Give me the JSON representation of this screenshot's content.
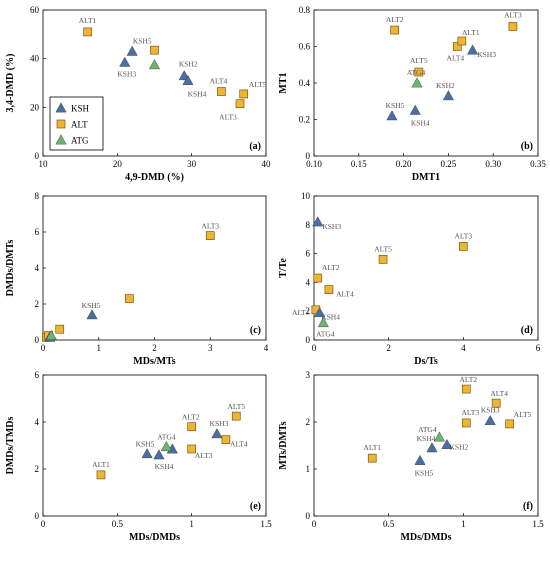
{
  "figure": {
    "title": ""
  },
  "colors": {
    "KSH": "#4a6fa5",
    "ALT": "#f0b433",
    "ATG": "#6db56d",
    "marker_edge": "#7a5a14"
  },
  "legend": {
    "placement": "bottom-left of panel (a)",
    "entries": [
      "KSH",
      "ALT",
      "ATG"
    ]
  },
  "chart_data": [
    {
      "type": "scatter",
      "panel_label": "(a)",
      "xlabel": "4,9-DMD (%)",
      "ylabel": "3,4-DMD (%)",
      "xlim": [
        10,
        40
      ],
      "ylim": [
        0,
        60
      ],
      "xticks": [
        "10",
        "20",
        "30",
        "40"
      ],
      "yticks": [
        "0",
        "20",
        "40",
        "60"
      ],
      "series": [
        {
          "name": "KSH",
          "points": [
            {
              "label": "KSH5",
              "x": 22.0,
              "y": 43.0
            },
            {
              "label": "KSH3",
              "x": 21.0,
              "y": 38.5
            },
            {
              "label": "KSH2",
              "x": 29.0,
              "y": 33.0
            },
            {
              "label": "KSH4",
              "x": 29.5,
              "y": 31.0
            }
          ]
        },
        {
          "name": "ALT",
          "points": [
            {
              "label": "ALT1",
              "x": 16.0,
              "y": 51.0
            },
            {
              "label": "",
              "x": 25.0,
              "y": 43.5
            },
            {
              "label": "ALT4",
              "x": 34.0,
              "y": 26.5
            },
            {
              "label": "ALT5",
              "x": 37.0,
              "y": 25.5
            },
            {
              "label": "ALT3",
              "x": 36.5,
              "y": 21.5
            }
          ]
        },
        {
          "name": "ATG",
          "points": [
            {
              "label": "",
              "x": 25.0,
              "y": 37.5
            }
          ]
        }
      ]
    },
    {
      "type": "scatter",
      "panel_label": "(b)",
      "xlabel": "DMT1",
      "ylabel": "MT1",
      "xlim": [
        0.1,
        0.35
      ],
      "ylim": [
        0,
        0.8
      ],
      "xticks": [
        "0.10",
        "0.15",
        "0.20",
        "0.25",
        "0.30",
        "0.35"
      ],
      "yticks": [
        "0",
        "0.2",
        "0.4",
        "0.6",
        "0.8"
      ],
      "series": [
        {
          "name": "KSH",
          "points": [
            {
              "label": "KSH5",
              "x": 0.187,
              "y": 0.22
            },
            {
              "label": "KSH4",
              "x": 0.213,
              "y": 0.25
            },
            {
              "label": "KSH2",
              "x": 0.25,
              "y": 0.33
            },
            {
              "label": "KSH3",
              "x": 0.277,
              "y": 0.58
            }
          ]
        },
        {
          "name": "ALT",
          "points": [
            {
              "label": "ALT2",
              "x": 0.19,
              "y": 0.69
            },
            {
              "label": "ALT5",
              "x": 0.217,
              "y": 0.46
            },
            {
              "label": "ALT4",
              "x": 0.26,
              "y": 0.6
            },
            {
              "label": "ALT1",
              "x": 0.265,
              "y": 0.63
            },
            {
              "label": "ALT3",
              "x": 0.322,
              "y": 0.71
            }
          ]
        },
        {
          "name": "ATG",
          "points": [
            {
              "label": "ATG4",
              "x": 0.215,
              "y": 0.4
            }
          ]
        }
      ]
    },
    {
      "type": "scatter",
      "panel_label": "(c)",
      "xlabel": "MDs/MTs",
      "ylabel": "DMDs/DMTs",
      "xlim": [
        0,
        4
      ],
      "ylim": [
        0,
        8
      ],
      "xticks": [
        "0",
        "1",
        "2",
        "3",
        "4"
      ],
      "yticks": [
        "0",
        "2",
        "4",
        "6",
        "8"
      ],
      "series": [
        {
          "name": "KSH",
          "points": [
            {
              "label": "KSH5",
              "x": 0.88,
              "y": 1.4
            },
            {
              "label": "",
              "x": 0.12,
              "y": 0.15
            }
          ]
        },
        {
          "name": "ALT",
          "points": [
            {
              "label": "ALT3",
              "x": 3.0,
              "y": 5.8
            },
            {
              "label": "",
              "x": 1.55,
              "y": 2.3
            },
            {
              "label": "",
              "x": 0.3,
              "y": 0.6
            },
            {
              "label": "",
              "x": 0.06,
              "y": 0.15
            },
            {
              "label": "",
              "x": 0.1,
              "y": 0.25
            }
          ]
        },
        {
          "name": "ATG",
          "points": [
            {
              "label": "",
              "x": 0.15,
              "y": 0.25
            }
          ]
        }
      ]
    },
    {
      "type": "scatter",
      "panel_label": "(d)",
      "xlabel": "Ds/Ts",
      "ylabel": "T/Te",
      "xlim": [
        0,
        6
      ],
      "ylim": [
        0,
        10
      ],
      "xticks": [
        "0",
        "2",
        "4",
        "6"
      ],
      "yticks": [
        "0",
        "2",
        "4",
        "6",
        "8",
        "10"
      ],
      "series": [
        {
          "name": "KSH",
          "points": [
            {
              "label": "KSH3",
              "x": 0.1,
              "y": 8.2
            },
            {
              "label": "KSH4",
              "x": 0.15,
              "y": 1.9
            }
          ]
        },
        {
          "name": "ALT",
          "points": [
            {
              "label": "ALT3",
              "x": 4.0,
              "y": 6.5
            },
            {
              "label": "ALT5",
              "x": 1.85,
              "y": 5.6
            },
            {
              "label": "ALT2",
              "x": 0.1,
              "y": 4.3
            },
            {
              "label": "ALT4",
              "x": 0.4,
              "y": 3.5
            },
            {
              "label": "ALT1",
              "x": 0.05,
              "y": 2.1
            }
          ]
        },
        {
          "name": "ATG",
          "points": [
            {
              "label": "ATG4",
              "x": 0.25,
              "y": 1.2
            }
          ]
        }
      ]
    },
    {
      "type": "scatter",
      "panel_label": "(e)",
      "xlabel": "MDs/DMDs",
      "ylabel": "DMDs/TMDs",
      "xlim": [
        0,
        1.5
      ],
      "ylim": [
        0,
        6
      ],
      "xticks": [
        "0",
        "0.5",
        "1",
        "1.5"
      ],
      "yticks": [
        "0",
        "2",
        "4",
        "6"
      ],
      "series": [
        {
          "name": "KSH",
          "points": [
            {
              "label": "KSH5",
              "x": 0.7,
              "y": 2.65
            },
            {
              "label": "KSH4",
              "x": 0.78,
              "y": 2.6
            },
            {
              "label": "",
              "x": 0.87,
              "y": 2.85
            },
            {
              "label": "KSH3",
              "x": 1.17,
              "y": 3.5
            }
          ]
        },
        {
          "name": "ALT",
          "points": [
            {
              "label": "ALT1",
              "x": 0.39,
              "y": 1.75
            },
            {
              "label": "ALT2",
              "x": 1.0,
              "y": 3.8
            },
            {
              "label": "ALT3",
              "x": 1.0,
              "y": 2.85
            },
            {
              "label": "ALT5",
              "x": 1.3,
              "y": 4.25
            },
            {
              "label": "ALT4",
              "x": 1.23,
              "y": 3.25
            }
          ]
        },
        {
          "name": "ATG",
          "points": [
            {
              "label": "ATG4",
              "x": 0.83,
              "y": 2.95
            }
          ]
        }
      ]
    },
    {
      "type": "scatter",
      "panel_label": "(f)",
      "xlabel": "MDs/DMDs",
      "ylabel": "MTs/DMTs",
      "xlim": [
        0,
        1.5
      ],
      "ylim": [
        0,
        3
      ],
      "xticks": [
        "0",
        "0.5",
        "1",
        "1.5"
      ],
      "yticks": [
        "0",
        "1",
        "2",
        "3"
      ],
      "series": [
        {
          "name": "KSH",
          "points": [
            {
              "label": "KSH5",
              "x": 0.71,
              "y": 1.18
            },
            {
              "label": "KSH4",
              "x": 0.79,
              "y": 1.45
            },
            {
              "label": "KSH2",
              "x": 0.89,
              "y": 1.52
            },
            {
              "label": "KSH3",
              "x": 1.18,
              "y": 2.03
            }
          ]
        },
        {
          "name": "ALT",
          "points": [
            {
              "label": "ALT1",
              "x": 0.39,
              "y": 1.23
            },
            {
              "label": "ALT2",
              "x": 1.02,
              "y": 2.7
            },
            {
              "label": "ALT4",
              "x": 1.22,
              "y": 2.4
            },
            {
              "label": "ALT3",
              "x": 1.02,
              "y": 1.98
            },
            {
              "label": "ALT5",
              "x": 1.31,
              "y": 1.96
            }
          ]
        },
        {
          "name": "ATG",
          "points": [
            {
              "label": "ATG4",
              "x": 0.84,
              "y": 1.68
            }
          ]
        }
      ]
    }
  ]
}
